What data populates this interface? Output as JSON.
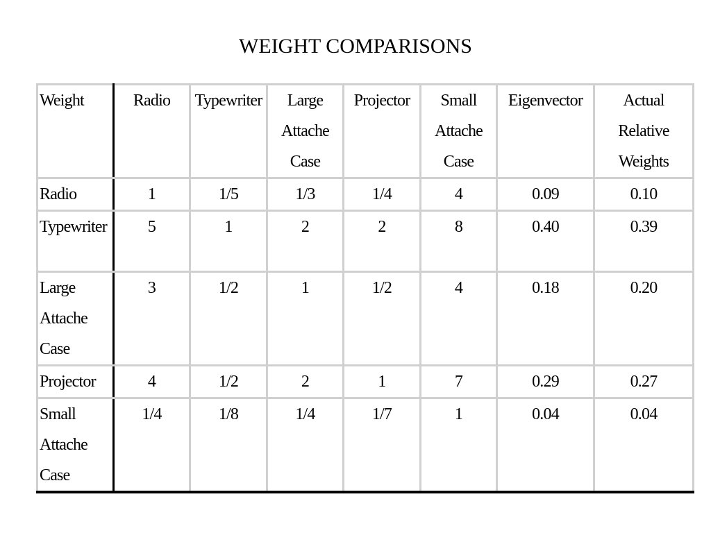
{
  "header": {
    "title": "WEIGHT COMPARISONS"
  },
  "table": {
    "columns": [
      "Weight",
      "Radio",
      "Typewriter",
      "Large Attache Case",
      "Projector",
      "Small Attache Case",
      "Eigenvector",
      "Actual Relative Weights"
    ],
    "rows": [
      [
        "Radio",
        "1",
        "1/5",
        "1/3",
        "1/4",
        "4",
        "0.09",
        "0.10"
      ],
      [
        "Typewriter",
        "5",
        "1",
        "2",
        "2",
        "8",
        "0.40",
        "0.39"
      ],
      [
        "Large Attache Case",
        "3",
        "1/2",
        "1",
        "1/2",
        "4",
        "0.18",
        "0.20"
      ],
      [
        "Projector",
        "4",
        "1/2",
        "2",
        "1",
        "7",
        "0.29",
        "0.27"
      ],
      [
        "Small Attache Case",
        "1/4",
        "1/8",
        "1/4",
        "1/7",
        "1",
        "0.04",
        "0.04"
      ]
    ]
  }
}
